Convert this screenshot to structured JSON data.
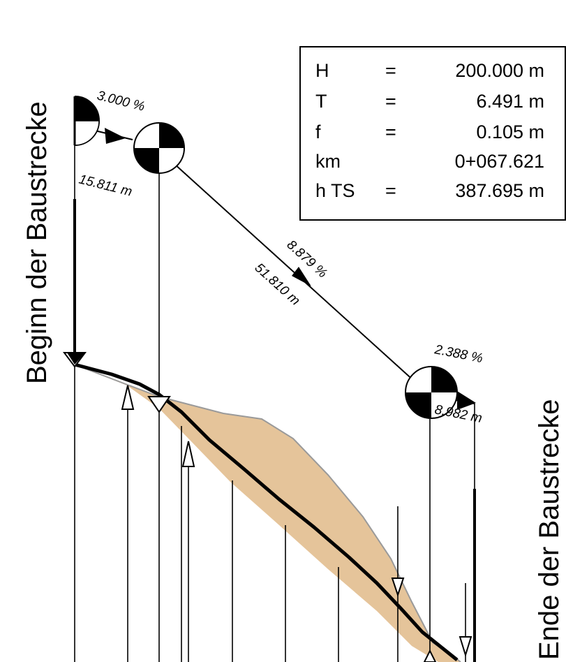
{
  "labels": {
    "start": "Beginn der Baustrecke",
    "end": "Ende der Baustrecke"
  },
  "info_box": {
    "rows": [
      {
        "key": "H",
        "eq": "=",
        "value": "200.000 m"
      },
      {
        "key": "T",
        "eq": "=",
        "value": "6.491 m"
      },
      {
        "key": "f",
        "eq": "=",
        "value": "0.105 m"
      },
      {
        "key": "km",
        "eq": "",
        "value": "0+067.621"
      },
      {
        "key": "h TS",
        "eq": "=",
        "value": "387.695 m"
      }
    ]
  },
  "segments": [
    {
      "grade": "3.000 %",
      "length": "15.811 m"
    },
    {
      "grade": "8.879 %",
      "length": "51.810 m"
    },
    {
      "grade": "2.388 %",
      "length": "8.982 m"
    }
  ],
  "colors": {
    "terrain_fill": "#e5c49a",
    "terrain_edge": "#9a9a9a",
    "line": "#000000",
    "background": "#ffffff"
  }
}
